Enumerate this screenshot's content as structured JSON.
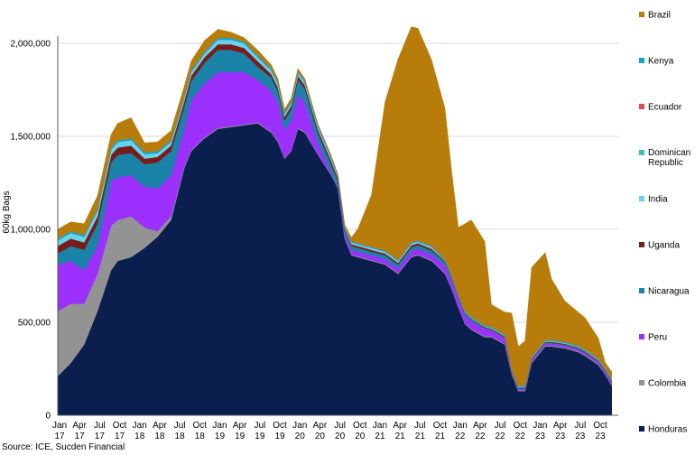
{
  "chart_data": {
    "type": "area",
    "stacked": true,
    "ylabel": "60kg Bags",
    "ylim": [
      0,
      2000000
    ],
    "yticks": [
      0,
      500000,
      1000000,
      1500000,
      2000000
    ],
    "ytick_labels": [
      "0",
      "500,000",
      "1,000,000",
      "1,500,000",
      "2,000,000"
    ],
    "grid": "horizontal",
    "legend_position": "right",
    "source": "Source: ICE, Sucden Financial",
    "xtick_labels": [
      [
        "Jan",
        "17"
      ],
      [
        "Apr",
        "17"
      ],
      [
        "Jul",
        "17"
      ],
      [
        "Oct",
        "17"
      ],
      [
        "Jan",
        "18"
      ],
      [
        "Apr",
        "18"
      ],
      [
        "Jul",
        "18"
      ],
      [
        "Oct",
        "18"
      ],
      [
        "Jan",
        "19"
      ],
      [
        "Apr",
        "19"
      ],
      [
        "Jul",
        "19"
      ],
      [
        "Oct",
        "19"
      ],
      [
        "Jan",
        "20"
      ],
      [
        "Apr",
        "20"
      ],
      [
        "Jul",
        "20"
      ],
      [
        "Oct",
        "20"
      ],
      [
        "Jan",
        "21"
      ],
      [
        "Apr",
        "21"
      ],
      [
        "Jul",
        "21"
      ],
      [
        "Oct",
        "21"
      ],
      [
        "Jan",
        "22"
      ],
      [
        "Apr",
        "22"
      ],
      [
        "Jul",
        "22"
      ],
      [
        "Oct",
        "22"
      ],
      [
        "Jan",
        "23"
      ],
      [
        "Apr",
        "23"
      ],
      [
        "Jul",
        "23"
      ],
      [
        "Oct",
        "23"
      ]
    ],
    "x": [
      "2017-01",
      "2017-03",
      "2017-05",
      "2017-07",
      "2017-09",
      "2017-10",
      "2017-12",
      "2018-02",
      "2018-04",
      "2018-06",
      "2018-08",
      "2018-09",
      "2018-11",
      "2019-01",
      "2019-03",
      "2019-05",
      "2019-07",
      "2019-09",
      "2019-10",
      "2019-11",
      "2019-12",
      "2020-01",
      "2020-02",
      "2020-04",
      "2020-06",
      "2020-07",
      "2020-08",
      "2020-09",
      "2020-10",
      "2020-12",
      "2021-02",
      "2021-04",
      "2021-06",
      "2021-07",
      "2021-09",
      "2021-11",
      "2021-12",
      "2022-01",
      "2022-02",
      "2022-03",
      "2022-05",
      "2022-06",
      "2022-08",
      "2022-09",
      "2022-10",
      "2022-11",
      "2022-12",
      "2023-02",
      "2023-03",
      "2023-05",
      "2023-07",
      "2023-08",
      "2023-10",
      "2023-11",
      "2023-12"
    ],
    "series": [
      {
        "name": "Honduras",
        "color": "#0b1f4f",
        "values": [
          210000,
          280000,
          380000,
          560000,
          780000,
          830000,
          850000,
          900000,
          960000,
          1050000,
          1330000,
          1420000,
          1490000,
          1540000,
          1550000,
          1560000,
          1570000,
          1520000,
          1470000,
          1380000,
          1420000,
          1540000,
          1520000,
          1400000,
          1290000,
          1220000,
          950000,
          860000,
          850000,
          830000,
          810000,
          760000,
          850000,
          860000,
          830000,
          760000,
          680000,
          580000,
          490000,
          460000,
          420000,
          420000,
          380000,
          220000,
          130000,
          130000,
          280000,
          370000,
          370000,
          360000,
          340000,
          320000,
          270000,
          220000,
          160000
        ]
      },
      {
        "name": "Colombia",
        "color": "#939393",
        "values": [
          350000,
          320000,
          220000,
          200000,
          240000,
          220000,
          220000,
          110000,
          30000,
          20000,
          10000,
          5000,
          5000,
          5000,
          5000,
          5000,
          5000,
          5000,
          5000,
          5000,
          5000,
          5000,
          5000,
          5000,
          5000,
          5000,
          5000,
          5000,
          5000,
          5000,
          5000,
          5000,
          5000,
          5000,
          5000,
          5000,
          5000,
          5000,
          5000,
          5000,
          5000,
          5000,
          5000,
          5000,
          5000,
          5000,
          5000,
          5000,
          5000,
          5000,
          5000,
          5000,
          5000,
          5000,
          5000
        ]
      },
      {
        "name": "Peru",
        "color": "#9b30ff",
        "values": [
          250000,
          230000,
          180000,
          150000,
          240000,
          230000,
          220000,
          220000,
          230000,
          220000,
          200000,
          270000,
          290000,
          300000,
          290000,
          280000,
          230000,
          220000,
          210000,
          150000,
          160000,
          180000,
          160000,
          60000,
          10000,
          5000,
          20000,
          25000,
          25000,
          25000,
          25000,
          25000,
          30000,
          30000,
          30000,
          40000,
          40000,
          40000,
          40000,
          40000,
          40000,
          30000,
          30000,
          5000,
          5000,
          5000,
          10000,
          10000,
          10000,
          10000,
          10000,
          10000,
          10000,
          10000,
          10000
        ]
      },
      {
        "name": "Nicaragua",
        "color": "#1b82a8",
        "values": [
          60000,
          80000,
          110000,
          120000,
          100000,
          120000,
          120000,
          120000,
          140000,
          130000,
          120000,
          100000,
          110000,
          120000,
          120000,
          100000,
          70000,
          70000,
          60000,
          50000,
          60000,
          80000,
          70000,
          50000,
          40000,
          30000,
          20000,
          20000,
          20000,
          20000,
          20000,
          20000,
          20000,
          20000,
          20000,
          20000,
          15000,
          10000,
          10000,
          10000,
          5000,
          5000,
          5000,
          5000,
          5000,
          5000,
          5000,
          5000,
          5000,
          5000,
          5000,
          5000,
          5000,
          5000,
          5000
        ]
      },
      {
        "name": "Uganda",
        "color": "#7b1c1c",
        "values": [
          40000,
          40000,
          40000,
          40000,
          40000,
          40000,
          40000,
          30000,
          30000,
          30000,
          30000,
          30000,
          30000,
          30000,
          30000,
          30000,
          30000,
          20000,
          20000,
          20000,
          20000,
          20000,
          20000,
          20000,
          20000,
          15000,
          10000,
          10000,
          10000,
          10000,
          10000,
          10000,
          10000,
          10000,
          10000,
          5000,
          5000,
          5000,
          5000,
          5000,
          5000,
          5000,
          5000,
          5000,
          5000,
          5000,
          5000,
          5000,
          5000,
          5000,
          5000,
          5000,
          5000,
          5000,
          5000
        ]
      },
      {
        "name": "India",
        "color": "#67d4ee",
        "values": [
          30000,
          30000,
          30000,
          30000,
          30000,
          30000,
          30000,
          25000,
          20000,
          20000,
          20000,
          20000,
          20000,
          25000,
          25000,
          25000,
          20000,
          20000,
          20000,
          15000,
          15000,
          15000,
          15000,
          15000,
          15000,
          10000,
          10000,
          10000,
          10000,
          10000,
          10000,
          10000,
          10000,
          10000,
          10000,
          5000,
          5000,
          5000,
          5000,
          5000,
          5000,
          5000,
          5000,
          5000,
          5000,
          5000,
          5000,
          5000,
          5000,
          5000,
          5000,
          5000,
          5000,
          5000,
          5000
        ]
      },
      {
        "name": "Dominican Republic",
        "color": "#3cc1a8",
        "values": [
          0,
          0,
          0,
          0,
          0,
          0,
          0,
          0,
          0,
          0,
          0,
          0,
          0,
          0,
          0,
          0,
          0,
          0,
          0,
          0,
          0,
          0,
          0,
          0,
          0,
          0,
          0,
          0,
          0,
          0,
          0,
          0,
          0,
          0,
          0,
          0,
          0,
          0,
          0,
          0,
          0,
          0,
          0,
          0,
          0,
          0,
          0,
          0,
          0,
          0,
          0,
          0,
          0,
          0,
          0
        ]
      },
      {
        "name": "Ecuador",
        "color": "#e8484b",
        "values": [
          0,
          0,
          0,
          0,
          0,
          0,
          0,
          0,
          0,
          0,
          0,
          0,
          0,
          0,
          0,
          0,
          0,
          0,
          0,
          0,
          0,
          0,
          0,
          0,
          0,
          0,
          0,
          0,
          0,
          0,
          0,
          0,
          0,
          0,
          0,
          0,
          0,
          0,
          0,
          0,
          0,
          0,
          0,
          0,
          0,
          0,
          0,
          0,
          0,
          0,
          0,
          0,
          0,
          0,
          0
        ]
      },
      {
        "name": "Kenya",
        "color": "#1aa3cf",
        "values": [
          10000,
          10000,
          10000,
          10000,
          10000,
          10000,
          10000,
          10000,
          10000,
          10000,
          10000,
          10000,
          10000,
          10000,
          10000,
          10000,
          10000,
          10000,
          10000,
          10000,
          10000,
          10000,
          10000,
          10000,
          10000,
          5000,
          5000,
          5000,
          5000,
          5000,
          5000,
          5000,
          5000,
          5000,
          5000,
          5000,
          5000,
          5000,
          5000,
          5000,
          5000,
          5000,
          5000,
          5000,
          5000,
          5000,
          5000,
          5000,
          5000,
          5000,
          5000,
          5000,
          5000,
          5000,
          5000
        ]
      },
      {
        "name": "Brazil",
        "color": "#b87c0a",
        "values": [
          50000,
          50000,
          60000,
          70000,
          70000,
          90000,
          110000,
          50000,
          50000,
          50000,
          50000,
          50000,
          60000,
          45000,
          30000,
          20000,
          30000,
          20000,
          15000,
          15000,
          15000,
          15000,
          10000,
          5000,
          5000,
          5000,
          5000,
          20000,
          80000,
          280000,
          800000,
          1080000,
          1160000,
          1140000,
          1000000,
          810000,
          560000,
          360000,
          470000,
          520000,
          450000,
          120000,
          120000,
          300000,
          210000,
          240000,
          480000,
          470000,
          330000,
          220000,
          180000,
          170000,
          110000,
          30000,
          40000
        ]
      }
    ]
  }
}
